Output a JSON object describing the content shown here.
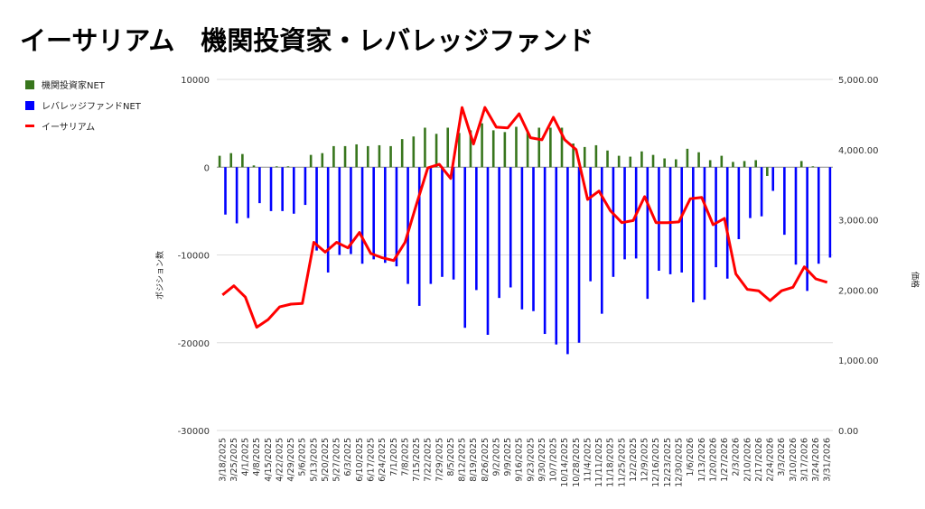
{
  "chart_data": {
    "type": "bar+line",
    "title": "イーサリアム　機関投資家・レバレッジファンド",
    "ylabel_left": "ポジション数",
    "ylabel_right": "価格",
    "ylim_left": [
      -30000,
      10000
    ],
    "yticks_left": [
      "10000",
      "0",
      "-10000",
      "-20000",
      "-30000"
    ],
    "ylim_right": [
      0,
      5000
    ],
    "yticks_right": [
      "5,000.00",
      "4,000.00",
      "3,000.00",
      "2,000.00",
      "1,000.00",
      "0.00"
    ],
    "grid": true,
    "legend_position": "left",
    "categories": [
      "3/18/2025",
      "3/25/2025",
      "4/1/2025",
      "4/8/2025",
      "4/15/2025",
      "4/22/2025",
      "4/29/2025",
      "5/6/2025",
      "5/13/2025",
      "5/20/2025",
      "5/27/2025",
      "6/3/2025",
      "6/10/2025",
      "6/17/2025",
      "6/24/2025",
      "7/1/2025",
      "7/8/2025",
      "7/15/2025",
      "7/22/2025",
      "7/29/2025",
      "8/5/2025",
      "8/12/2025",
      "8/19/2025",
      "8/26/2025",
      "9/2/2025",
      "9/9/2025",
      "9/16/2025",
      "9/23/2025",
      "9/30/2025",
      "10/7/2025",
      "10/14/2025",
      "10/28/2025",
      "11/4/2025",
      "11/11/2025",
      "11/18/2025",
      "11/25/2025",
      "12/2/2025",
      "12/9/2025",
      "12/16/2025",
      "12/23/2025",
      "12/30/2025",
      "1/6/2026",
      "1/13/2026",
      "1/20/2026",
      "1/27/2026",
      "2/3/2026",
      "2/10/2026",
      "2/17/2026",
      "2/24/2026",
      "3/3/2026",
      "3/10/2026",
      "3/17/2026",
      "3/24/2026",
      "3/31/2026"
    ],
    "series": [
      {
        "name": "機関投資家NET",
        "type": "bar",
        "axis": "left",
        "color": "#38761d",
        "values": [
          1300,
          1600,
          1500,
          200,
          0,
          100,
          100,
          0,
          1400,
          1600,
          2400,
          2400,
          2600,
          2400,
          2500,
          2400,
          3200,
          3500,
          4500,
          3800,
          4500,
          3900,
          4200,
          5000,
          4200,
          4000,
          4600,
          4000,
          4500,
          4500,
          4500,
          2700,
          2300,
          2500,
          1900,
          1300,
          1200,
          1800,
          1400,
          1000,
          900,
          2100,
          1700,
          800,
          1300,
          600,
          700,
          800,
          -1000,
          0,
          0,
          700,
          100,
          0
        ]
      },
      {
        "name": "レバレッジファンドNET",
        "type": "bar",
        "axis": "left",
        "color": "#0000ff",
        "values": [
          -5400,
          -6400,
          -5800,
          -4100,
          -5000,
          -5000,
          -5300,
          -4300,
          -9500,
          -12000,
          -10000,
          -9900,
          -11000,
          -10500,
          -10900,
          -11300,
          -13300,
          -15800,
          -13300,
          -12500,
          -12800,
          -18300,
          -14000,
          -19100,
          -14900,
          -13700,
          -16200,
          -16400,
          -19000,
          -20200,
          -21300,
          -20000,
          -13000,
          -16700,
          -12500,
          -10500,
          -10400,
          -15000,
          -11800,
          -12200,
          -12000,
          -15400,
          -15100,
          -11400,
          -12700,
          -8200,
          -5800,
          -5600,
          -2700,
          -7700,
          -11100,
          -14100,
          -11000,
          -10300
        ]
      },
      {
        "name": "イーサリアム",
        "type": "line",
        "axis": "right",
        "color": "#ff0000",
        "values": [
          1930,
          2060,
          1900,
          1470,
          1580,
          1760,
          1800,
          1810,
          2680,
          2540,
          2680,
          2600,
          2820,
          2520,
          2460,
          2420,
          2680,
          3220,
          3740,
          3790,
          3590,
          4600,
          4080,
          4600,
          4320,
          4310,
          4510,
          4170,
          4140,
          4460,
          4140,
          4000,
          3290,
          3410,
          3130,
          2960,
          2990,
          3330,
          2960,
          2960,
          2970,
          3300,
          3320,
          2930,
          3020,
          2230,
          2010,
          1990,
          1850,
          1990,
          2040,
          2330,
          2160,
          2110
        ]
      }
    ]
  }
}
